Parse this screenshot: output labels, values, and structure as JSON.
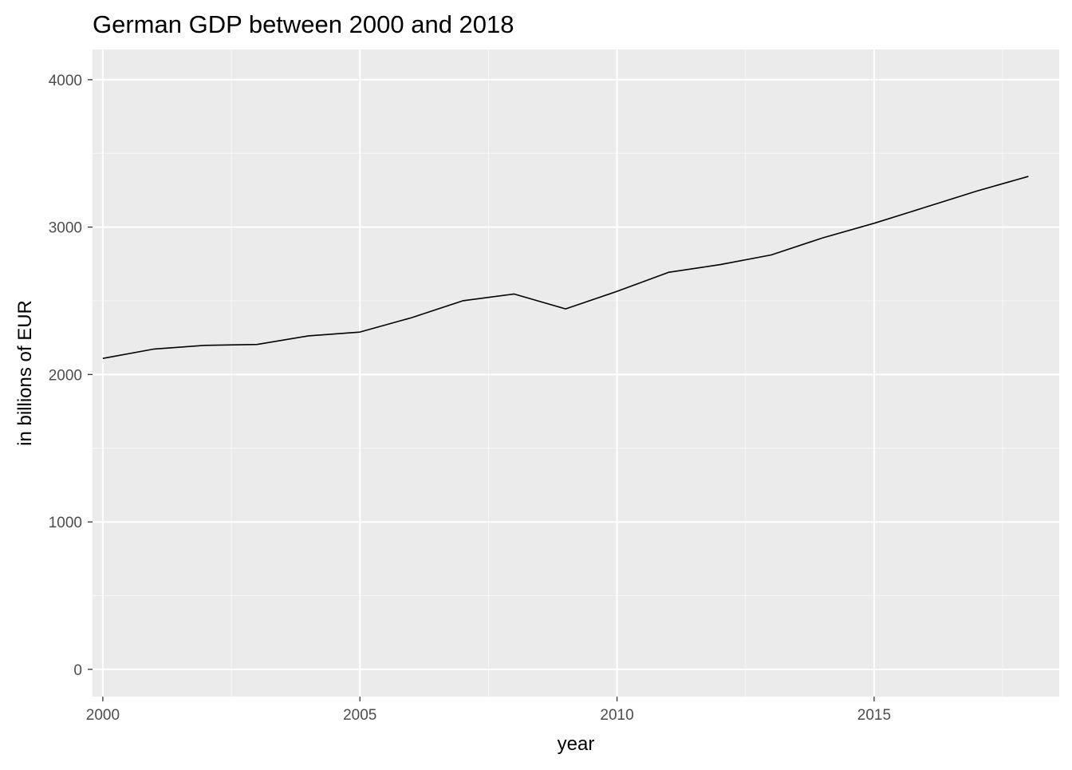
{
  "chart_data": {
    "type": "line",
    "title": "German GDP between 2000 and 2018",
    "xlabel": "year",
    "ylabel": "in billions of EUR",
    "x": [
      2000,
      2001,
      2002,
      2003,
      2004,
      2005,
      2006,
      2007,
      2008,
      2009,
      2010,
      2011,
      2012,
      2013,
      2014,
      2015,
      2016,
      2017,
      2018
    ],
    "series": [
      {
        "values": [
          2109,
          2173,
          2198,
          2204,
          2262,
          2288,
          2385,
          2500,
          2546,
          2445,
          2564,
          2693,
          2745,
          2811,
          2927,
          3026,
          3135,
          3245,
          3344
        ]
      }
    ],
    "xlim": [
      1999.8,
      2018.6
    ],
    "ylim": [
      -185,
      4205
    ],
    "x_ticks": [
      2000,
      2005,
      2010,
      2015
    ],
    "x_tick_labels": [
      "2000",
      "2005",
      "2010",
      "2015"
    ],
    "y_ticks": [
      0,
      1000,
      2000,
      3000,
      4000
    ],
    "y_tick_labels": [
      "0",
      "1000",
      "2000",
      "3000",
      "4000"
    ],
    "grid": true,
    "legend": "none",
    "colors": {
      "panel_background": "#ebebeb",
      "grid_major": "#ffffff",
      "grid_minor": "#f7f7f7",
      "line": "#000000",
      "tick_text": "#4d4d4d",
      "tick_mark": "#333333"
    }
  }
}
